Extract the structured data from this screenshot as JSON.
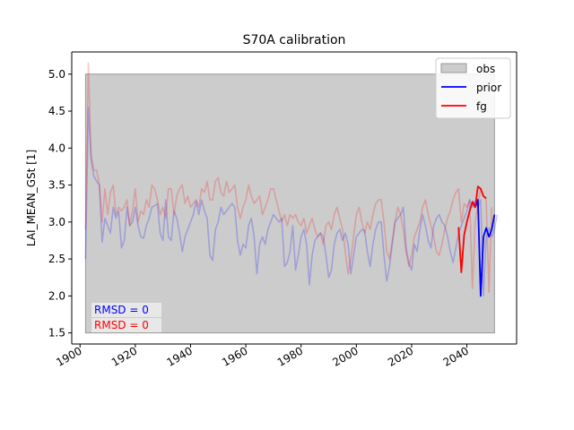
{
  "chart_data": {
    "type": "line",
    "title": "S70A calibration",
    "xlabel": "",
    "ylabel": "LAI_MEAN_GSt [1]",
    "xlim": [
      1897,
      2058
    ],
    "ylim": [
      1.35,
      5.3
    ],
    "x_ticks": [
      "1900",
      "1920",
      "1940",
      "1960",
      "1980",
      "2000",
      "2020",
      "2040"
    ],
    "y_ticks": [
      "1.5",
      "2.0",
      "2.5",
      "3.0",
      "3.5",
      "4.0",
      "4.5",
      "5.0"
    ],
    "grid": false,
    "legend": {
      "placement": "top-right",
      "entries": [
        "obs",
        "prior",
        "fg"
      ]
    },
    "obs_band": {
      "name": "obs",
      "x": [
        1902,
        2050
      ],
      "y": [
        1.5,
        5.0
      ],
      "color": "#cccccc"
    },
    "annotations": [
      {
        "text": "RMSD = 0",
        "color": "#0000ff"
      },
      {
        "text": "RMSD = 0",
        "color": "#ff0000"
      }
    ],
    "series": [
      {
        "name": "prior",
        "color": "#0000ff",
        "faded": true,
        "x_start": 1902,
        "values": [
          2.5,
          4.55,
          3.85,
          3.62,
          3.55,
          3.5,
          2.73,
          3.05,
          2.95,
          2.85,
          3.2,
          3.05,
          3.15,
          2.65,
          2.75,
          3.2,
          2.95,
          3.0,
          3.2,
          2.95,
          2.8,
          2.78,
          2.95,
          3.05,
          3.2,
          3.22,
          3.25,
          2.85,
          2.75,
          3.3,
          2.8,
          2.75,
          3.15,
          3.05,
          2.85,
          2.6,
          2.8,
          2.9,
          3.0,
          3.1,
          3.28,
          3.1,
          3.3,
          3.15,
          3.05,
          2.55,
          2.48,
          2.9,
          3.0,
          3.2,
          3.1,
          3.15,
          3.2,
          3.25,
          3.2,
          2.75,
          2.55,
          2.7,
          2.65,
          2.95,
          3.05,
          2.8,
          2.3,
          2.7,
          2.8,
          2.7,
          2.9,
          3.0,
          3.1,
          3.05,
          3.0,
          3.05,
          2.4,
          2.45,
          2.6,
          2.95,
          2.35,
          2.55,
          2.8,
          2.9,
          2.7,
          2.15,
          2.55,
          2.75,
          2.8,
          2.85,
          2.8,
          2.55,
          2.25,
          2.35,
          2.7,
          2.85,
          2.9,
          2.75,
          2.85,
          2.7,
          2.3,
          2.55,
          2.8,
          2.85,
          2.9,
          2.88,
          2.6,
          2.4,
          2.7,
          2.9,
          3.0,
          3.0,
          2.55,
          2.2,
          2.4,
          2.7,
          3.0,
          3.05,
          3.1,
          3.2,
          2.65,
          2.45,
          2.35,
          2.7,
          2.6,
          2.9,
          3.1,
          2.95,
          2.75,
          2.65,
          2.95,
          3.05,
          3.1,
          3.0,
          2.95,
          2.8,
          2.6,
          2.45,
          2.65,
          2.85,
          2.95,
          3.05,
          3.15,
          3.3,
          3.2,
          3.28,
          3.2,
          3.3,
          2.0,
          2.8,
          2.92,
          2.8,
          2.9,
          3.1
        ]
      },
      {
        "name": "fg",
        "color": "#ff0000",
        "faded": true,
        "x_start": 1902,
        "values": [
          2.9,
          5.15,
          3.9,
          3.7,
          3.7,
          3.5,
          3.0,
          3.45,
          3.1,
          3.4,
          3.5,
          3.1,
          3.2,
          3.15,
          3.2,
          3.3,
          2.95,
          3.15,
          3.45,
          3.0,
          3.15,
          3.1,
          3.3,
          3.2,
          3.5,
          3.45,
          3.3,
          3.1,
          3.2,
          3.05,
          3.45,
          3.45,
          3.1,
          3.35,
          3.45,
          3.5,
          3.25,
          3.35,
          3.2,
          3.25,
          3.3,
          3.2,
          3.45,
          3.4,
          3.55,
          3.3,
          3.3,
          3.55,
          3.6,
          3.4,
          3.35,
          3.55,
          3.4,
          3.45,
          3.5,
          3.2,
          3.05,
          3.2,
          3.3,
          3.5,
          3.35,
          3.25,
          3.3,
          3.35,
          3.1,
          3.2,
          3.3,
          3.45,
          3.45,
          3.3,
          3.15,
          3.0,
          3.1,
          2.95,
          3.1,
          3.05,
          3.1,
          3.0,
          2.95,
          3.05,
          2.85,
          2.95,
          3.05,
          2.9,
          2.8,
          2.85,
          2.7,
          2.95,
          3.0,
          2.9,
          3.1,
          3.2,
          3.05,
          2.9,
          2.6,
          2.3,
          2.5,
          2.8,
          3.1,
          3.2,
          3.0,
          2.85,
          3.0,
          2.9,
          3.1,
          3.25,
          3.3,
          3.3,
          3.0,
          2.6,
          2.5,
          2.75,
          3.0,
          3.2,
          3.1,
          2.9,
          2.6,
          2.4,
          2.55,
          2.8,
          2.9,
          3.0,
          3.2,
          3.3,
          3.1,
          2.95,
          2.8,
          2.6,
          2.55,
          2.7,
          2.9,
          3.05,
          3.15,
          3.3,
          3.4,
          3.45,
          3.0,
          3.25,
          3.2,
          3.3,
          2.1,
          3.0,
          3.25,
          3.45,
          3.35,
          3.3,
          2.05,
          3.2
        ]
      },
      {
        "name": "prior",
        "color": "#0000ff",
        "faded": false,
        "x_start": 2042,
        "values": [
          3.28,
          3.2,
          3.3,
          2.0,
          2.8,
          2.92,
          2.8,
          2.9,
          3.1
        ]
      },
      {
        "name": "fg",
        "color": "#ff0000",
        "faded": false,
        "x_start": 2037,
        "values": [
          2.93,
          2.32,
          2.82,
          3.0,
          3.15,
          3.27,
          3.2,
          3.48,
          3.45,
          3.35,
          3.32
        ]
      }
    ]
  }
}
